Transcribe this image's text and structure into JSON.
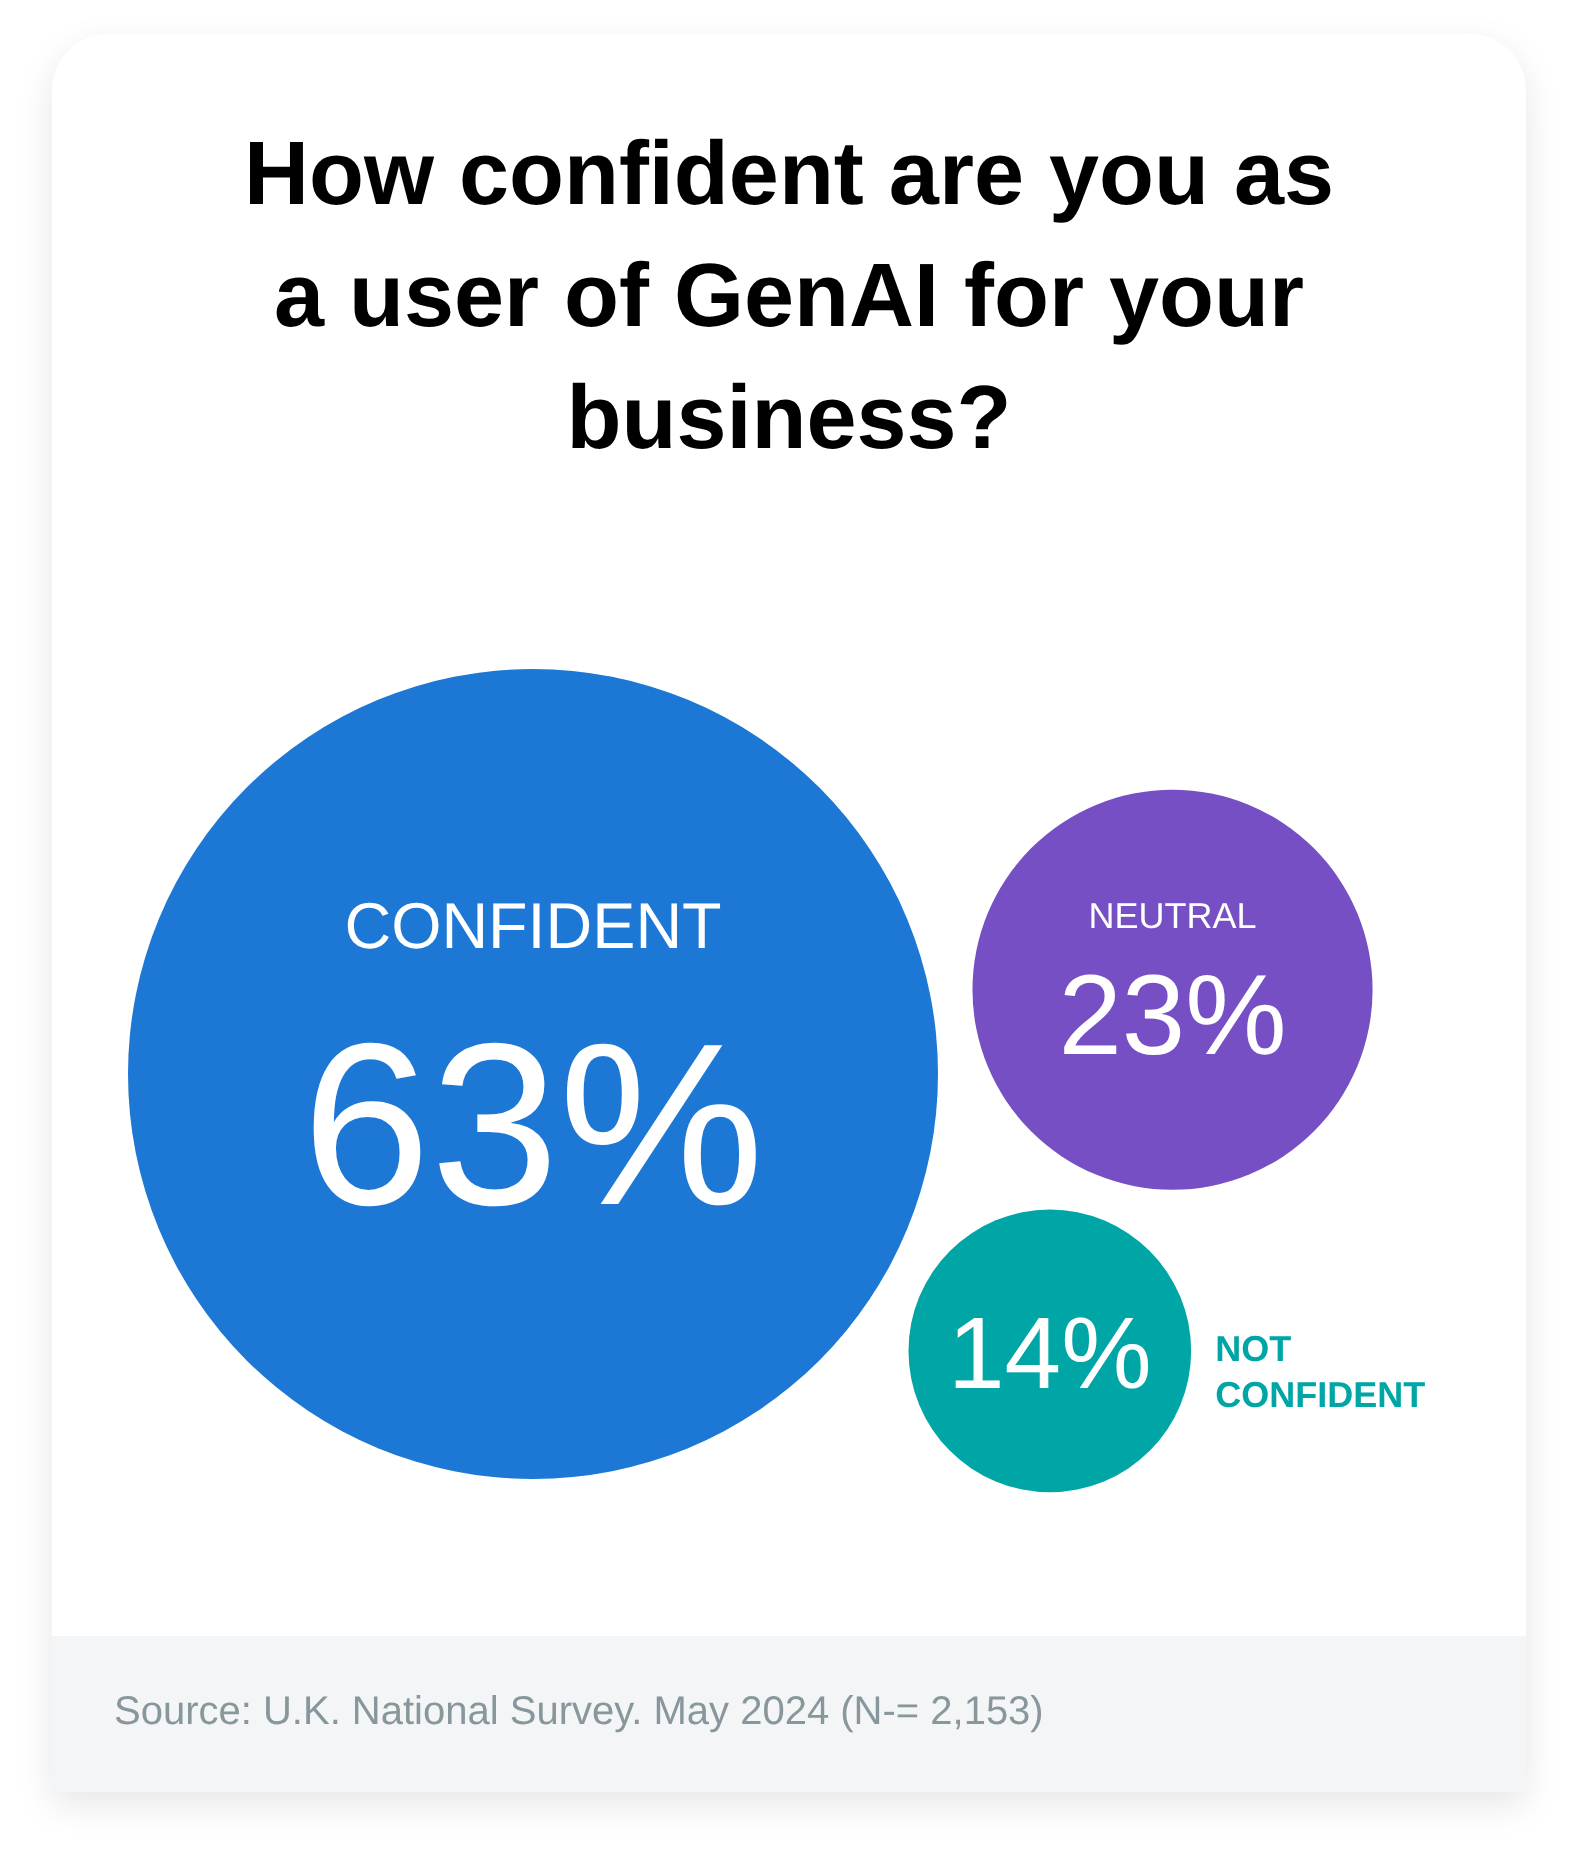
{
  "chart_data": {
    "type": "other",
    "title": "How confident are you as a user of GenAI for your business?",
    "categories": [
      "CONFIDENT",
      "NEUTRAL",
      "NOT CONFIDENT"
    ],
    "values": [
      63,
      23,
      14
    ],
    "value_labels": [
      "63%",
      "23%",
      "14%"
    ],
    "colors": [
      "#1c78d4",
      "#764fc4",
      "#00a6a6"
    ],
    "annotations": [
      "Source: U.K. National Survey. May 2024 (N-= 2,153)"
    ]
  }
}
